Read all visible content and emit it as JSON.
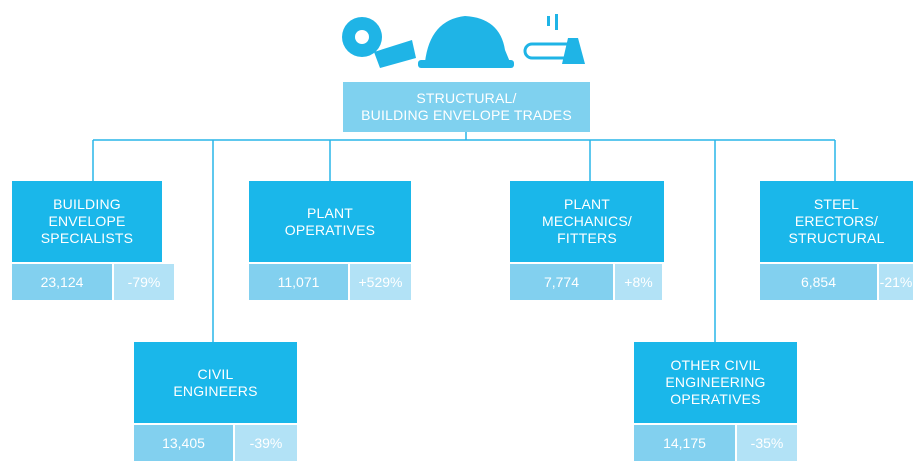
{
  "root": {
    "lines": [
      "STRUCTURAL/",
      "BUILDING ENVELOPE TRADES"
    ]
  },
  "nodes": [
    {
      "lines": [
        "BUILDING",
        "ENVELOPE",
        "SPECIALISTS"
      ],
      "count": "23,124",
      "change": "-79%"
    },
    {
      "lines": [
        "CIVIL",
        "ENGINEERS"
      ],
      "count": "13,405",
      "change": "-39%"
    },
    {
      "lines": [
        "PLANT",
        "OPERATIVES"
      ],
      "count": "11,071",
      "change": "+529%"
    },
    {
      "lines": [
        "PLANT",
        "MECHANICS/",
        "FITTERS"
      ],
      "count": "7,774",
      "change": "+8%"
    },
    {
      "lines": [
        "OTHER CIVIL",
        "ENGINEERING",
        "OPERATIVES"
      ],
      "count": "14,175",
      "change": "-35%"
    },
    {
      "lines": [
        "STEEL",
        "ERECTORS/",
        "STRUCTURAL"
      ],
      "count": "6,854",
      "change": "-21%"
    }
  ]
}
